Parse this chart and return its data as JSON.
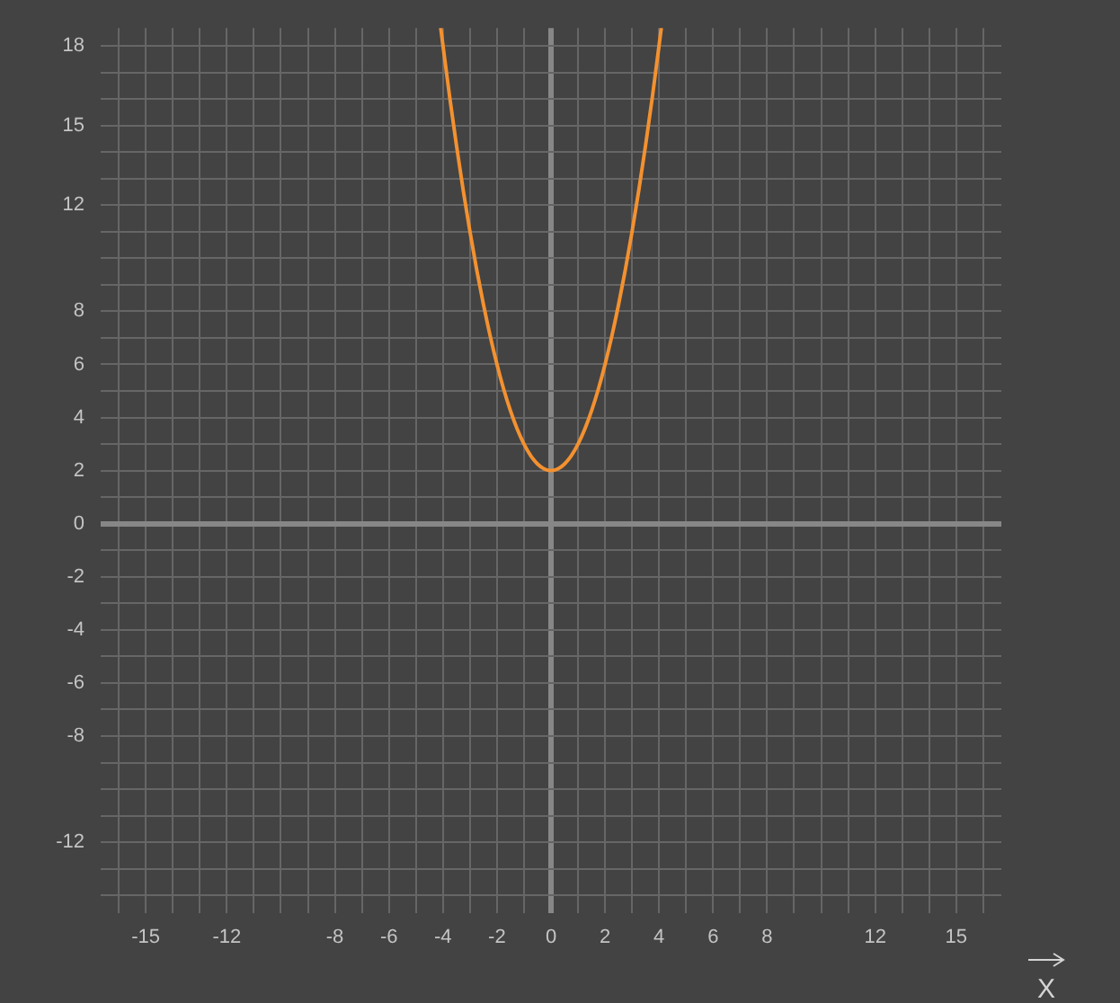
{
  "chart_data": {
    "type": "line",
    "xlabel": "X",
    "x": [
      -4.08,
      -3.75,
      -3.5,
      -3.25,
      -3,
      -2.75,
      -2.5,
      -2.25,
      -2,
      -1.75,
      -1.5,
      -1.25,
      -1,
      -0.75,
      -0.5,
      -0.25,
      0,
      0.25,
      0.5,
      0.75,
      1,
      1.25,
      1.5,
      1.75,
      2,
      2.25,
      2.5,
      2.75,
      3,
      3.25,
      3.5,
      3.75,
      4.08
    ],
    "series": [
      {
        "color": "#f39130",
        "values": [
          18.65,
          16.06,
          14.25,
          12.56,
          11,
          9.56,
          8.25,
          7.06,
          6,
          5.06,
          4.25,
          3.56,
          3,
          2.56,
          2.25,
          2.06,
          2,
          2.06,
          2.25,
          2.56,
          3,
          3.56,
          4.25,
          5.06,
          6,
          7.06,
          8.25,
          9.56,
          11,
          12.56,
          14.25,
          16.06,
          18.65
        ]
      }
    ],
    "xlim": [
      -16.67,
      16.67
    ],
    "ylim": [
      -14.67,
      18.67
    ],
    "xticks": [
      {
        "value": -16,
        "label": null
      },
      -15,
      {
        "value": -14,
        "label": null
      },
      {
        "value": -13,
        "label": null
      },
      -12,
      {
        "value": -11,
        "label": null
      },
      {
        "value": -10,
        "label": null
      },
      {
        "value": -9,
        "label": null
      },
      -8,
      {
        "value": -7,
        "label": null
      },
      -6,
      {
        "value": -5,
        "label": null
      },
      -4,
      {
        "value": -3,
        "label": null
      },
      -2,
      {
        "value": -1,
        "label": null
      },
      0,
      {
        "value": 1,
        "label": null
      },
      2,
      {
        "value": 3,
        "label": null
      },
      4,
      {
        "value": 5,
        "label": null
      },
      6,
      {
        "value": 7,
        "label": null
      },
      8,
      {
        "value": 9,
        "label": null
      },
      {
        "value": 10,
        "label": null
      },
      {
        "value": 11,
        "label": null
      },
      12,
      {
        "value": 13,
        "label": null
      },
      {
        "value": 14,
        "label": null
      },
      15,
      {
        "value": 16,
        "label": null
      }
    ],
    "yticks": [
      {
        "value": -14,
        "label": null
      },
      {
        "value": -13,
        "label": null
      },
      -12,
      {
        "value": -11,
        "label": null
      },
      {
        "value": -10,
        "label": null
      },
      {
        "value": -9,
        "label": null
      },
      -8,
      {
        "value": -7,
        "label": null
      },
      -6,
      {
        "value": -5,
        "label": null
      },
      -4,
      {
        "value": -3,
        "label": null
      },
      -2,
      {
        "value": -1,
        "label": null
      },
      0,
      {
        "value": 1,
        "label": null
      },
      2,
      {
        "value": 3,
        "label": null
      },
      4,
      {
        "value": 5,
        "label": null
      },
      6,
      {
        "value": 7,
        "label": null
      },
      8,
      {
        "value": 9,
        "label": null
      },
      {
        "value": 10,
        "label": null
      },
      {
        "value": 11,
        "label": null
      },
      12,
      {
        "value": 13,
        "label": null
      },
      {
        "value": 14,
        "label": null
      },
      15,
      {
        "value": 16,
        "label": null
      },
      {
        "value": 17,
        "label": null
      },
      18
    ],
    "grid": true,
    "marker": "none",
    "line_style": "solid"
  }
}
